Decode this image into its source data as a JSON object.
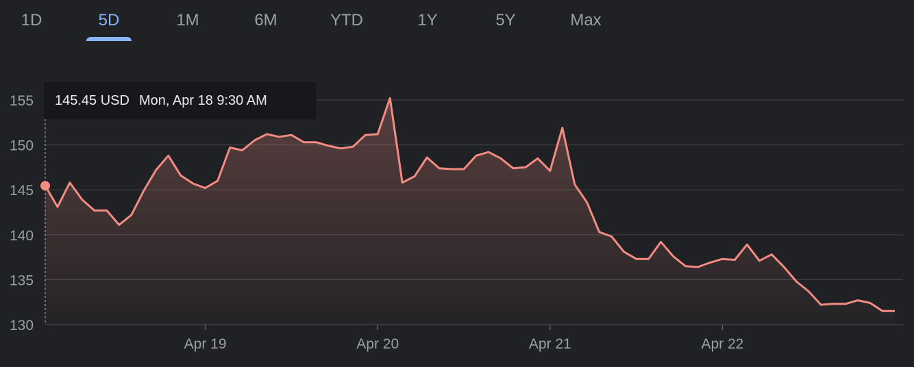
{
  "tabs": [
    {
      "label": "1D",
      "active": false
    },
    {
      "label": "5D",
      "active": true
    },
    {
      "label": "1M",
      "active": false
    },
    {
      "label": "6M",
      "active": false
    },
    {
      "label": "YTD",
      "active": false
    },
    {
      "label": "1Y",
      "active": false
    },
    {
      "label": "5Y",
      "active": false
    },
    {
      "label": "Max",
      "active": false
    }
  ],
  "tooltip": {
    "price": "145.45 USD",
    "datetime": "Mon, Apr 18 9:30 AM"
  },
  "colors": {
    "line": "#f28b82",
    "grid": "#3c4043",
    "active_tab": "#8ab4f8"
  },
  "chart_data": {
    "type": "area",
    "ylim": [
      130,
      155
    ],
    "yticks": [
      155,
      150,
      145,
      140,
      135,
      130
    ],
    "x_ticks": [
      "Apr 19",
      "Apr 20",
      "Apr 21",
      "Apr 22"
    ],
    "x_tick_index": [
      13,
      27,
      41,
      55
    ],
    "unit": "USD",
    "series": [
      {
        "values": [
          145.45,
          143.1,
          145.8,
          143.9,
          142.7,
          142.7,
          141.1,
          142.2,
          144.9,
          147.2,
          148.8,
          146.6,
          145.7,
          145.2,
          146.0,
          149.7,
          149.4,
          150.5,
          151.2,
          150.9,
          151.1,
          150.3,
          150.3,
          149.9,
          149.6,
          149.8,
          151.1,
          151.2,
          155.2,
          145.8,
          146.5,
          148.6,
          147.4,
          147.3,
          147.3,
          148.8,
          149.2,
          148.5,
          147.4,
          147.5,
          148.5,
          147.1,
          151.9,
          145.6,
          143.6,
          140.3,
          139.8,
          138.1,
          137.3,
          137.3,
          139.2,
          137.6,
          136.5,
          136.4,
          136.9,
          137.3,
          137.2,
          138.9,
          137.1,
          137.8,
          136.4,
          134.8,
          133.7,
          132.2,
          132.3,
          132.3,
          132.7,
          132.4,
          131.5,
          131.5
        ]
      }
    ]
  }
}
